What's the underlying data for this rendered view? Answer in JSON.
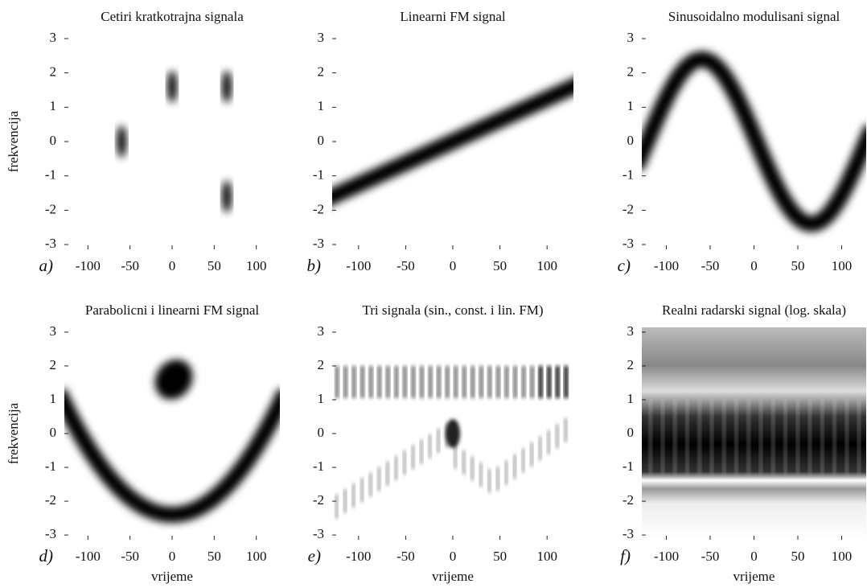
{
  "chart_data": [
    {
      "type": "heatmap",
      "title": "Cetiri kratkotrajna signala",
      "panel_label": "a)",
      "ylabel": "frekvencija",
      "xlim": [
        -128,
        128
      ],
      "ylim": [
        -3.14,
        3.14
      ],
      "xticks": [
        -100,
        -50,
        0,
        50,
        100
      ],
      "yticks": [
        -3,
        -2,
        -1,
        0,
        1,
        2,
        3
      ]
    },
    {
      "type": "heatmap",
      "title": "Linearni FM signal",
      "panel_label": "b)",
      "xlim": [
        -128,
        128
      ],
      "ylim": [
        -3.14,
        3.14
      ],
      "xticks": [
        -100,
        -50,
        0,
        50,
        100
      ],
      "yticks": [
        -3,
        -2,
        -1,
        0,
        1,
        2,
        3
      ]
    },
    {
      "type": "heatmap",
      "title": "Sinusoidalno modulisani signal",
      "panel_label": "c)",
      "xlim": [
        -128,
        128
      ],
      "ylim": [
        -3.14,
        3.14
      ],
      "xticks": [
        -100,
        -50,
        0,
        50,
        100
      ],
      "yticks": [
        -3,
        -2,
        -1,
        0,
        1,
        2,
        3
      ]
    },
    {
      "type": "heatmap",
      "title": "Parabolicni i linearni FM signal",
      "panel_label": "d)",
      "ylabel": "frekvencija",
      "xlabel": "vrijeme",
      "xlim": [
        -128,
        128
      ],
      "ylim": [
        -3.14,
        3.14
      ],
      "xticks": [
        -100,
        -50,
        0,
        50,
        100
      ],
      "yticks": [
        -3,
        -2,
        -1,
        0,
        1,
        2,
        3
      ]
    },
    {
      "type": "heatmap",
      "title": "Tri signala (sin., const. i lin. FM)",
      "panel_label": "e)",
      "xlabel": "vrijeme",
      "xlim": [
        -128,
        128
      ],
      "ylim": [
        -3.14,
        3.14
      ],
      "xticks": [
        -100,
        -50,
        0,
        50,
        100
      ],
      "yticks": [
        -3,
        -2,
        -1,
        0,
        1,
        2,
        3
      ]
    },
    {
      "type": "heatmap",
      "title": "Realni radarski signal (log. skala)",
      "panel_label": "f)",
      "xlabel": "vrijeme",
      "xlim": [
        -128,
        128
      ],
      "ylim": [
        -3.14,
        3.14
      ],
      "xticks": [
        -100,
        -50,
        0,
        50,
        100
      ],
      "yticks": [
        -3,
        -2,
        -1,
        0,
        1,
        2,
        3
      ]
    }
  ]
}
